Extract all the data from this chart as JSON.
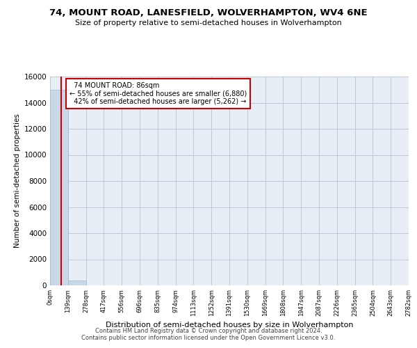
{
  "title": "74, MOUNT ROAD, LANESFIELD, WOLVERHAMPTON, WV4 6NE",
  "subtitle": "Size of property relative to semi-detached houses in Wolverhampton",
  "xlabel": "Distribution of semi-detached houses by size in Wolverhampton",
  "ylabel": "Number of semi-detached properties",
  "footer_line1": "Contains HM Land Registry data © Crown copyright and database right 2024.",
  "footer_line2": "Contains public sector information licensed under the Open Government Licence v3.0.",
  "property_size": 86,
  "property_label": "74 MOUNT ROAD: 86sqm",
  "pct_smaller": 55,
  "pct_larger": 42,
  "count_smaller": 6880,
  "count_larger": 5262,
  "bin_edges": [
    0,
    139,
    278,
    417,
    556,
    696,
    835,
    974,
    1113,
    1252,
    1391,
    1530,
    1669,
    1808,
    1947,
    2087,
    2226,
    2365,
    2504,
    2643,
    2782
  ],
  "bar_heights": [
    15000,
    400,
    5,
    2,
    1,
    0,
    0,
    0,
    0,
    0,
    0,
    0,
    0,
    0,
    0,
    0,
    0,
    0,
    0,
    0
  ],
  "bar_color": "#c8d8e8",
  "bar_edgecolor": "#a0b8d0",
  "line_color": "#cc0000",
  "annotation_box_edgecolor": "#cc0000",
  "grid_color": "#c0c8d8",
  "background_color": "#e8eef5",
  "ylim": [
    0,
    16000
  ],
  "yticks": [
    0,
    2000,
    4000,
    6000,
    8000,
    10000,
    12000,
    14000,
    16000
  ]
}
